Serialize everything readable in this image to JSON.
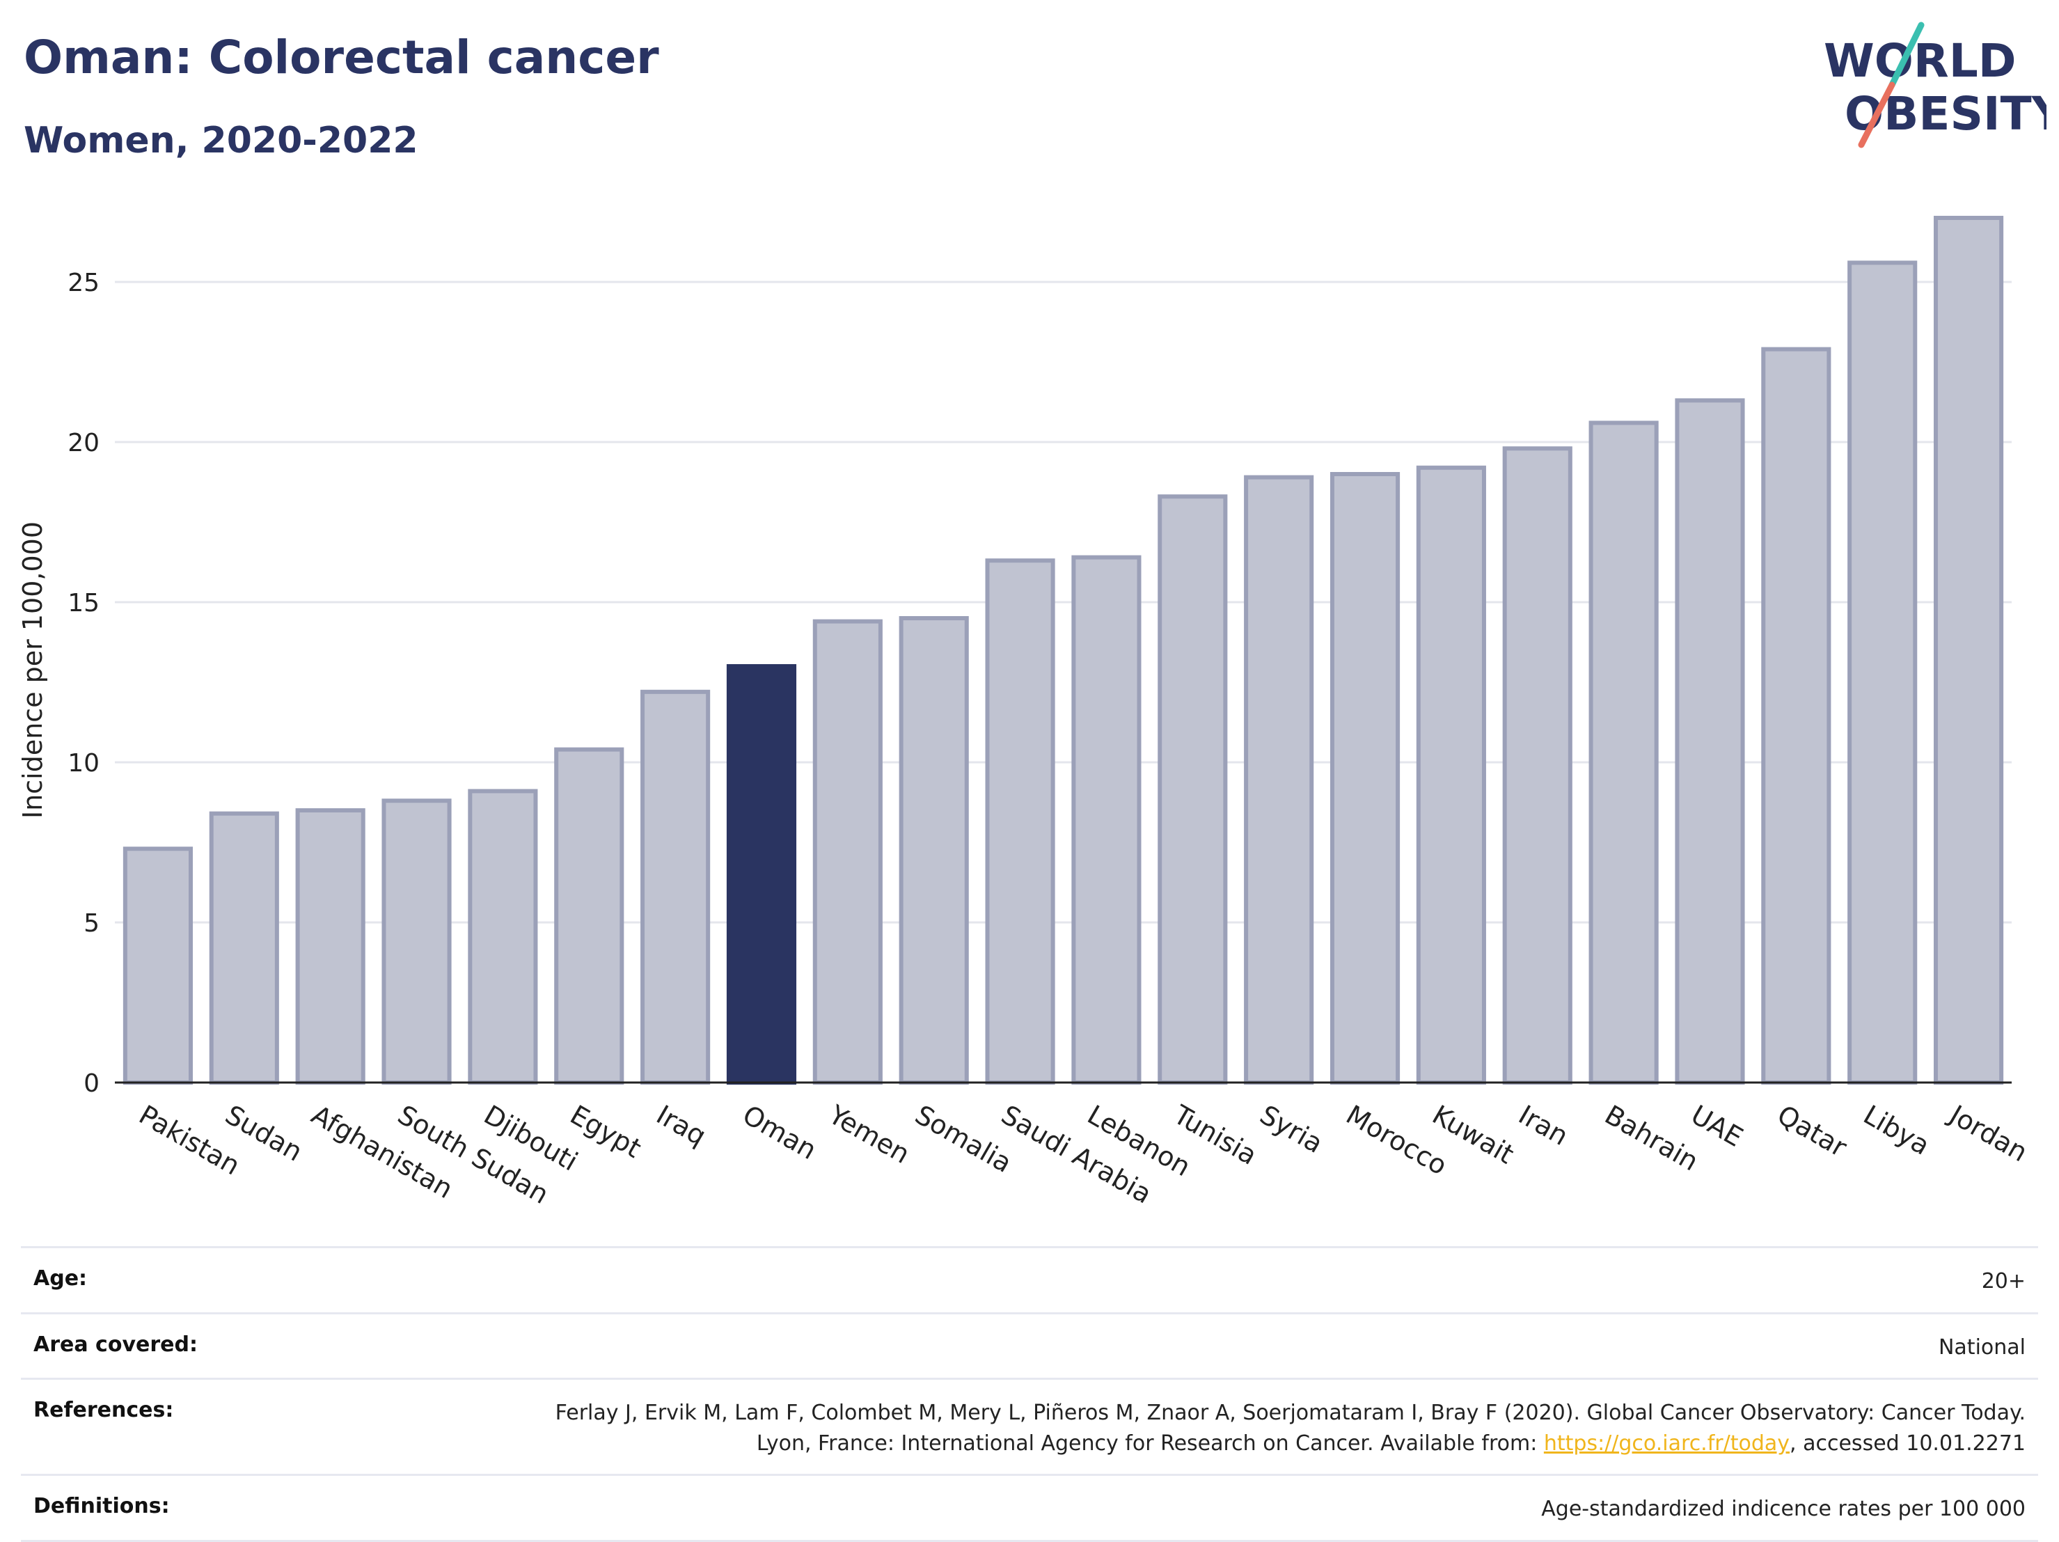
{
  "header": {
    "title": "Oman: Colorectal cancer",
    "subtitle": "Women, 2020-2022"
  },
  "logo": {
    "line1": "WORLD",
    "line2": "OBESITY",
    "colors": {
      "text": "#2a3463",
      "slash_top": "#3bbfb0",
      "slash_bottom": "#e8705e"
    }
  },
  "chart_data": {
    "type": "bar",
    "ylabel": "Incidence per 100,000",
    "xlabel": "",
    "ylim": [
      0,
      27.5
    ],
    "yticks": [
      0,
      5,
      10,
      15,
      20,
      25
    ],
    "grid": true,
    "highlight": "Oman",
    "colors": {
      "bar": "#c0c3d1",
      "bar_edge": "#9ba0b8",
      "highlight": "#2a3461"
    },
    "categories": [
      "Pakistan",
      "Sudan",
      "Afghanistan",
      "South Sudan",
      "Djibouti",
      "Egypt",
      "Iraq",
      "Oman",
      "Yemen",
      "Somalia",
      "Saudi Arabia",
      "Lebanon",
      "Tunisia",
      "Syria",
      "Morocco",
      "Kuwait",
      "Iran",
      "Bahrain",
      "UAE",
      "Qatar",
      "Libya",
      "Jordan"
    ],
    "values": [
      7.3,
      8.4,
      8.5,
      8.8,
      9.1,
      10.4,
      12.2,
      13.0,
      14.4,
      14.5,
      16.3,
      16.4,
      18.3,
      18.9,
      19.0,
      19.2,
      19.8,
      20.6,
      21.3,
      22.9,
      25.6,
      27.0
    ]
  },
  "info": {
    "age": {
      "label": "Age:",
      "value": "20+"
    },
    "area": {
      "label": "Area covered:",
      "value": "National"
    },
    "references": {
      "label": "References:",
      "text_before": "Ferlay J, Ervik M, Lam F, Colombet M, Mery L, Piñeros M, Znaor A, Soerjomataram I, Bray F (2020). Global Cancer Observatory: Cancer Today. Lyon, France: International Agency for Research on Cancer. Available from: ",
      "link": "https://gco.iarc.fr/today",
      "text_after": ", accessed 10.01.2271"
    },
    "definitions": {
      "label": "Definitions:",
      "value": "Age-standardized indicence rates per 100 000"
    }
  }
}
